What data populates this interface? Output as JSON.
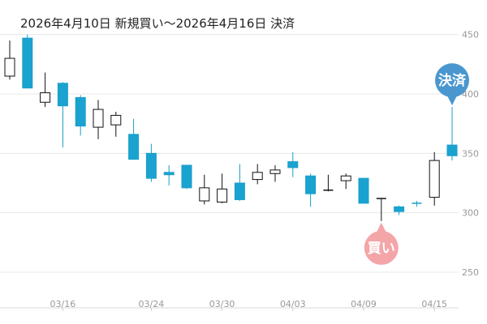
{
  "title": "2026年4月10日 新規買い～2026年4月16日 決済",
  "colors": {
    "down_fill": "#1aa3d1",
    "down_stroke": "#1a9ec8",
    "up_fill": "#ffffff",
    "up_stroke": "#111111",
    "entry_marker": "#f4a5a8",
    "exit_marker": "#4a97cf",
    "grid": "#e8e8e8",
    "tick_text": "#999999"
  },
  "chart_data": {
    "type": "candlestick",
    "title": "2026年4月10日 新規買い～2026年4月16日 決済",
    "y_ticks": [
      250,
      300,
      350,
      400,
      450
    ],
    "ylim": [
      220,
      460
    ],
    "y_axis_side": "right",
    "grid": true,
    "x_ticks": [
      {
        "index": 3,
        "label": "03/16"
      },
      {
        "index": 8,
        "label": "03/24"
      },
      {
        "index": 12,
        "label": "03/30"
      },
      {
        "index": 16,
        "label": "04/03"
      },
      {
        "index": 20,
        "label": "04/09"
      },
      {
        "index": 24,
        "label": "04/15"
      }
    ],
    "candles": [
      {
        "o": 415,
        "h": 445,
        "l": 412,
        "c": 430
      },
      {
        "o": 447,
        "h": 450,
        "l": 405,
        "c": 405
      },
      {
        "o": 393,
        "h": 418,
        "l": 389,
        "c": 401
      },
      {
        "o": 409,
        "h": 410,
        "l": 355,
        "c": 390
      },
      {
        "o": 397,
        "h": 399,
        "l": 365,
        "c": 373
      },
      {
        "o": 372,
        "h": 395,
        "l": 362,
        "c": 387
      },
      {
        "o": 374,
        "h": 385,
        "l": 364,
        "c": 382
      },
      {
        "o": 366,
        "h": 379,
        "l": 345,
        "c": 345
      },
      {
        "o": 350,
        "h": 358,
        "l": 326,
        "c": 329
      },
      {
        "o": 334,
        "h": 340,
        "l": 323,
        "c": 332
      },
      {
        "o": 340,
        "h": 340,
        "l": 320,
        "c": 321
      },
      {
        "o": 310,
        "h": 332,
        "l": 307,
        "c": 321
      },
      {
        "o": 309,
        "h": 333,
        "l": 308,
        "c": 320
      },
      {
        "o": 325,
        "h": 341,
        "l": 310,
        "c": 311
      },
      {
        "o": 328,
        "h": 341,
        "l": 324,
        "c": 334
      },
      {
        "o": 333,
        "h": 340,
        "l": 326,
        "c": 336
      },
      {
        "o": 343,
        "h": 351,
        "l": 330,
        "c": 338
      },
      {
        "o": 331,
        "h": 333,
        "l": 305,
        "c": 316
      },
      {
        "o": 319,
        "h": 332,
        "l": 318,
        "c": 319
      },
      {
        "o": 327,
        "h": 333,
        "l": 320,
        "c": 331
      },
      {
        "o": 329,
        "h": 329,
        "l": 308,
        "c": 308
      },
      {
        "o": 311,
        "h": 312,
        "l": 293,
        "c": 312
      },
      {
        "o": 305,
        "h": 306,
        "l": 298,
        "c": 301
      },
      {
        "o": 308,
        "h": 310,
        "l": 305,
        "c": 307
      },
      {
        "o": 313,
        "h": 351,
        "l": 306,
        "c": 344
      },
      {
        "o": 357,
        "h": 389,
        "l": 344,
        "c": 348
      }
    ],
    "markers": [
      {
        "label": "買い",
        "index": 21,
        "value": 293,
        "side": "below",
        "color": "#f4a5a8"
      },
      {
        "label": "決済",
        "index": 25,
        "value": 389,
        "side": "above",
        "color": "#4a97cf"
      }
    ]
  }
}
